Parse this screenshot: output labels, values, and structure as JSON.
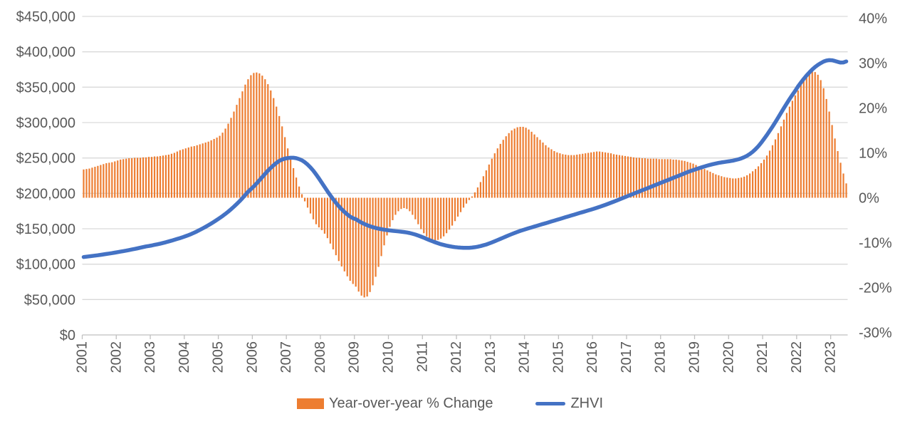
{
  "chart_data": {
    "type": "combo-bar-line",
    "title": "",
    "start_year": 2001,
    "months_total": 270,
    "x_tick_labels": [
      "2001",
      "2002",
      "2003",
      "2004",
      "2005",
      "2006",
      "2007",
      "2008",
      "2009",
      "2010",
      "2011",
      "2012",
      "2013",
      "2014",
      "2015",
      "2016",
      "2017",
      "2018",
      "2019",
      "2020",
      "2021",
      "2022",
      "2023"
    ],
    "left_axis": {
      "labels": [
        "$0",
        "$50,000",
        "$100,000",
        "$150,000",
        "$200,000",
        "$250,000",
        "$300,000",
        "$350,000",
        "$400,000",
        "$450,000"
      ],
      "min": 0,
      "max": 450000,
      "step": 50000
    },
    "right_axis": {
      "labels": [
        "-30%",
        "-20%",
        "-10%",
        "0%",
        "10%",
        "20%",
        "30%",
        "40%"
      ],
      "min": -30,
      "max": 40,
      "step": 10
    },
    "grid": "horizontal",
    "legend_position": "bottom",
    "series": [
      {
        "name": "Year-over-year % Change",
        "type": "bar",
        "axis": "right",
        "color": "#ED7D31",
        "unit": "percent",
        "values": [
          6.3,
          6.4,
          6.5,
          6.7,
          6.9,
          7.1,
          7.3,
          7.5,
          7.7,
          7.8,
          7.9,
          8.1,
          8.3,
          8.5,
          8.6,
          8.7,
          8.8,
          8.8,
          8.9,
          8.9,
          8.9,
          9.0,
          9.0,
          9.1,
          9.1,
          9.2,
          9.2,
          9.3,
          9.4,
          9.5,
          9.6,
          9.8,
          10.0,
          10.3,
          10.6,
          10.8,
          11.0,
          11.2,
          11.4,
          11.5,
          11.7,
          11.9,
          12.1,
          12.3,
          12.5,
          12.8,
          13.1,
          13.4,
          13.8,
          14.5,
          15.4,
          16.5,
          17.8,
          19.2,
          20.7,
          22.2,
          23.7,
          25.2,
          26.4,
          27.3,
          27.8,
          27.9,
          27.7,
          27.2,
          26.4,
          25.3,
          23.9,
          22.2,
          20.3,
          18.2,
          15.9,
          13.5,
          11.0,
          8.8,
          6.6,
          4.5,
          2.5,
          0.8,
          -0.8,
          -2.2,
          -3.5,
          -4.8,
          -5.9,
          -6.6,
          -7.2,
          -8.0,
          -9.0,
          -10.2,
          -11.5,
          -12.8,
          -14.1,
          -15.3,
          -16.4,
          -17.5,
          -18.5,
          -19.2,
          -19.8,
          -20.9,
          -21.8,
          -22.2,
          -22.0,
          -21.0,
          -19.5,
          -17.6,
          -15.4,
          -13.0,
          -10.6,
          -8.4,
          -6.5,
          -5.0,
          -3.8,
          -3.0,
          -2.5,
          -2.3,
          -2.5,
          -3.0,
          -3.8,
          -4.8,
          -5.9,
          -7.0,
          -7.9,
          -8.6,
          -9.1,
          -9.4,
          -9.5,
          -9.4,
          -9.1,
          -8.6,
          -7.9,
          -7.1,
          -6.2,
          -5.2,
          -4.2,
          -3.2,
          -2.2,
          -1.3,
          -0.5,
          0.3,
          1.2,
          2.3,
          3.5,
          4.8,
          6.1,
          7.4,
          8.7,
          9.9,
          11.0,
          12.0,
          12.9,
          13.7,
          14.4,
          15.0,
          15.4,
          15.7,
          15.8,
          15.8,
          15.6,
          15.2,
          14.7,
          14.1,
          13.5,
          12.9,
          12.3,
          11.7,
          11.2,
          10.8,
          10.4,
          10.1,
          9.9,
          9.7,
          9.6,
          9.5,
          9.5,
          9.5,
          9.6,
          9.7,
          9.8,
          9.9,
          10.0,
          10.1,
          10.2,
          10.3,
          10.3,
          10.2,
          10.1,
          10.0,
          9.9,
          9.7,
          9.6,
          9.5,
          9.4,
          9.3,
          9.2,
          9.1,
          9.0,
          8.9,
          8.9,
          8.8,
          8.8,
          8.7,
          8.7,
          8.7,
          8.7,
          8.6,
          8.6,
          8.6,
          8.6,
          8.6,
          8.5,
          8.5,
          8.4,
          8.3,
          8.2,
          8.0,
          7.8,
          7.6,
          7.3,
          7.0,
          6.7,
          6.4,
          6.1,
          5.8,
          5.5,
          5.2,
          5.0,
          4.8,
          4.6,
          4.5,
          4.4,
          4.3,
          4.3,
          4.4,
          4.5,
          4.7,
          5.0,
          5.4,
          5.9,
          6.4,
          7.0,
          7.7,
          8.5,
          9.4,
          10.5,
          11.7,
          13.0,
          14.4,
          15.9,
          17.4,
          18.9,
          20.3,
          21.6,
          22.8,
          23.9,
          25.2,
          26.3,
          27.2,
          27.8,
          28.1,
          28.0,
          27.4,
          26.2,
          24.4,
          22.0,
          19.2,
          16.2,
          13.2,
          10.4,
          7.8,
          5.4,
          3.2
        ]
      },
      {
        "name": "ZHVI",
        "type": "line",
        "axis": "left",
        "color": "#4472C4",
        "unit": "dollars",
        "values": [
          110000,
          110500,
          111000,
          111500,
          112000,
          112600,
          113200,
          113800,
          114400,
          115000,
          115600,
          116300,
          117000,
          117700,
          118400,
          119100,
          119900,
          120700,
          121500,
          122300,
          123200,
          124100,
          125000,
          125600,
          126300,
          127200,
          128100,
          129000,
          130000,
          131000,
          132100,
          133200,
          134400,
          135600,
          136800,
          138100,
          139500,
          141000,
          142700,
          144500,
          146400,
          148400,
          150500,
          152700,
          155000,
          157400,
          159900,
          162500,
          165200,
          168000,
          171000,
          174200,
          177600,
          181200,
          185000,
          189000,
          193200,
          197600,
          202200,
          206000,
          209800,
          214000,
          218500,
          223000,
          227500,
          232000,
          236000,
          239700,
          243000,
          245800,
          247800,
          249200,
          249900,
          250300,
          250300,
          249700,
          248500,
          246600,
          244000,
          240700,
          236700,
          232000,
          226700,
          221000,
          215000,
          209000,
          203000,
          197200,
          191700,
          186600,
          181900,
          177600,
          173700,
          170200,
          167100,
          164900,
          163500,
          161000,
          158700,
          156700,
          155000,
          153500,
          152200,
          151100,
          150200,
          149400,
          148700,
          148100,
          147600,
          147100,
          146700,
          146300,
          145900,
          145400,
          144800,
          144000,
          143000,
          141800,
          140400,
          138900,
          137300,
          135600,
          134000,
          132400,
          130900,
          129500,
          128200,
          127100,
          126100,
          125300,
          124600,
          124000,
          123600,
          123300,
          123100,
          123000,
          123100,
          123400,
          123900,
          124600,
          125500,
          126600,
          127800,
          129200,
          130700,
          132300,
          134000,
          135700,
          137400,
          139100,
          140800,
          142500,
          144100,
          145600,
          147000,
          148300,
          149500,
          150700,
          151900,
          153100,
          154300,
          155500,
          156700,
          157900,
          159100,
          160300,
          161500,
          162700,
          163900,
          165100,
          166300,
          167500,
          168700,
          169900,
          171100,
          172300,
          173500,
          174700,
          175900,
          177100,
          178300,
          179600,
          180900,
          182300,
          183700,
          185200,
          186700,
          188300,
          189900,
          191500,
          193100,
          194700,
          196300,
          197900,
          199500,
          201100,
          202700,
          204300,
          205900,
          207500,
          209100,
          210700,
          212300,
          213900,
          215500,
          217100,
          218700,
          220300,
          221900,
          223500,
          225100,
          226700,
          228300,
          229900,
          231400,
          232800,
          234200,
          235500,
          236800,
          238000,
          239200,
          240300,
          241300,
          242200,
          243000,
          243700,
          244300,
          244900,
          245500,
          246200,
          247100,
          248200,
          249500,
          251100,
          253100,
          255600,
          258700,
          262400,
          266700,
          271500,
          276800,
          282400,
          288300,
          294400,
          300700,
          307200,
          313800,
          320400,
          326900,
          333200,
          339200,
          344800,
          351000,
          356500,
          361700,
          366500,
          370900,
          374900,
          378400,
          381400,
          384000,
          386200,
          387600,
          388200,
          388000,
          387000,
          385800,
          384800,
          385000,
          386400
        ]
      }
    ],
    "legend": [
      "Year-over-year % Change",
      "ZHVI"
    ]
  },
  "colors": {
    "bar": "#ED7D31",
    "line": "#4472C4",
    "gridline": "#D9D9D9",
    "axis_line": "#BFBFBF",
    "text": "#595959",
    "background": "#FFFFFF"
  }
}
